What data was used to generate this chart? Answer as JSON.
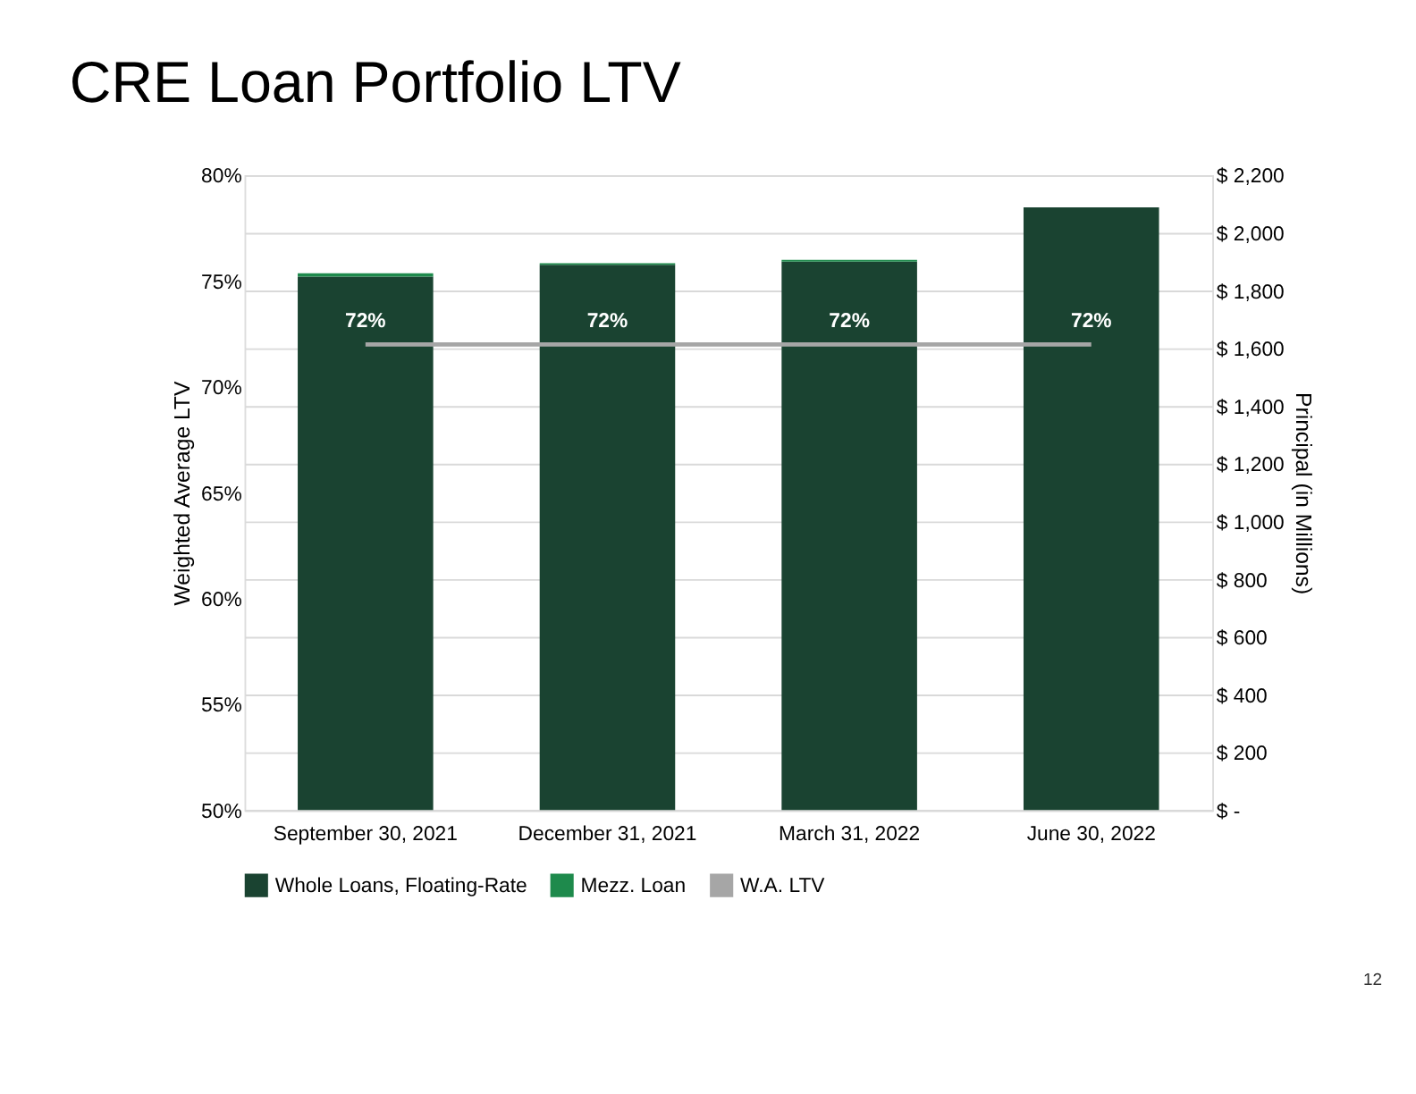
{
  "chart_data": {
    "type": "bar",
    "title": "CRE Loan Portfolio LTV",
    "categories": [
      "September 30, 2021",
      "December 31, 2021",
      "March 31, 2022",
      "June 30, 2022"
    ],
    "series": [
      {
        "name": "Whole Loans, Floating-Rate",
        "color": "#1a4331",
        "axis": "y2",
        "values": [
          1848,
          1889,
          1900,
          2088
        ]
      },
      {
        "name": "Mezz. Loan",
        "color": "#1e8a4c",
        "axis": "y2",
        "values": [
          12,
          6,
          6,
          0
        ]
      },
      {
        "name": "W.A. LTV",
        "color": "#a6a6a6",
        "type": "line",
        "axis": "y",
        "values": [
          72,
          72,
          72,
          72
        ],
        "value_labels": [
          "72%",
          "72%",
          "72%",
          "72%"
        ]
      }
    ],
    "stacked": true,
    "ylabel": "Weighted Average LTV",
    "y2label": "Principal (in Millions)",
    "ylim": [
      50,
      80
    ],
    "yticks": [
      {
        "value": 50,
        "label": "50%"
      },
      {
        "value": 55,
        "label": "55%"
      },
      {
        "value": 60,
        "label": "60%"
      },
      {
        "value": 65,
        "label": "65%"
      },
      {
        "value": 70,
        "label": "70%"
      },
      {
        "value": 75,
        "label": "75%"
      },
      {
        "value": 80,
        "label": "80%"
      }
    ],
    "y2lim": [
      0,
      2200
    ],
    "y2ticks": [
      {
        "value": 0,
        "label": "$ -"
      },
      {
        "value": 200,
        "label": "$ 200"
      },
      {
        "value": 400,
        "label": "$ 400"
      },
      {
        "value": 600,
        "label": "$ 600"
      },
      {
        "value": 800,
        "label": "$ 800"
      },
      {
        "value": 1000,
        "label": "$ 1,000"
      },
      {
        "value": 1200,
        "label": "$ 1,200"
      },
      {
        "value": 1400,
        "label": "$ 1,400"
      },
      {
        "value": 1600,
        "label": "$ 1,600"
      },
      {
        "value": 1800,
        "label": "$ 1,800"
      },
      {
        "value": 2000,
        "label": "$ 2,000"
      },
      {
        "value": 2200,
        "label": "$ 2,200"
      }
    ],
    "grid": "y2",
    "legend": "bottom",
    "annotations": [
      "12"
    ]
  }
}
